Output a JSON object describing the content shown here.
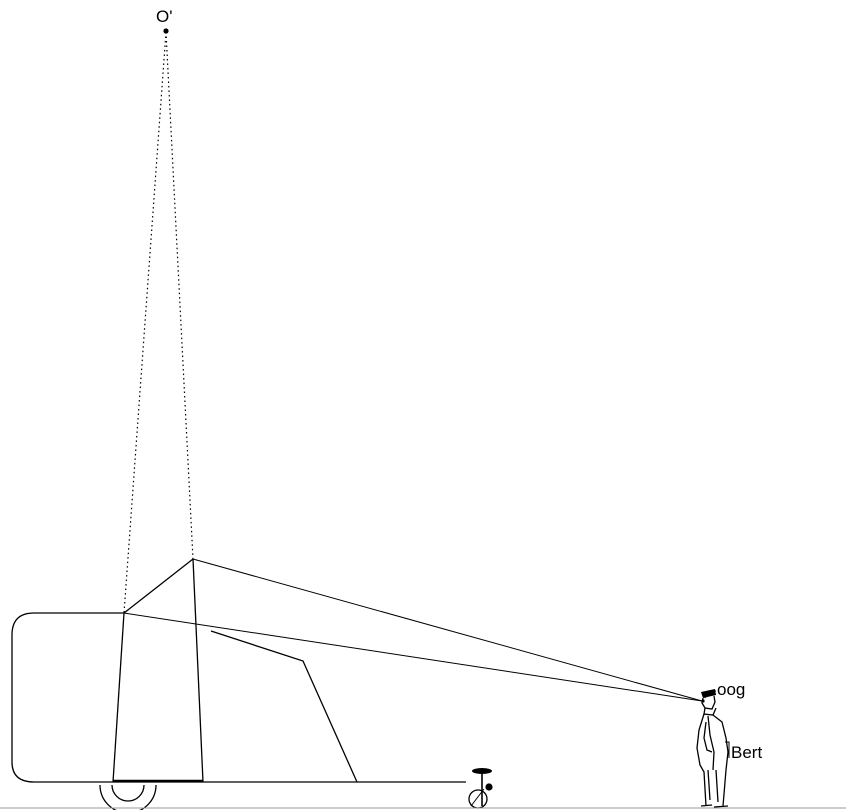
{
  "labels": {
    "top_point": "O'",
    "eye": "oog",
    "person": "Bert"
  }
}
